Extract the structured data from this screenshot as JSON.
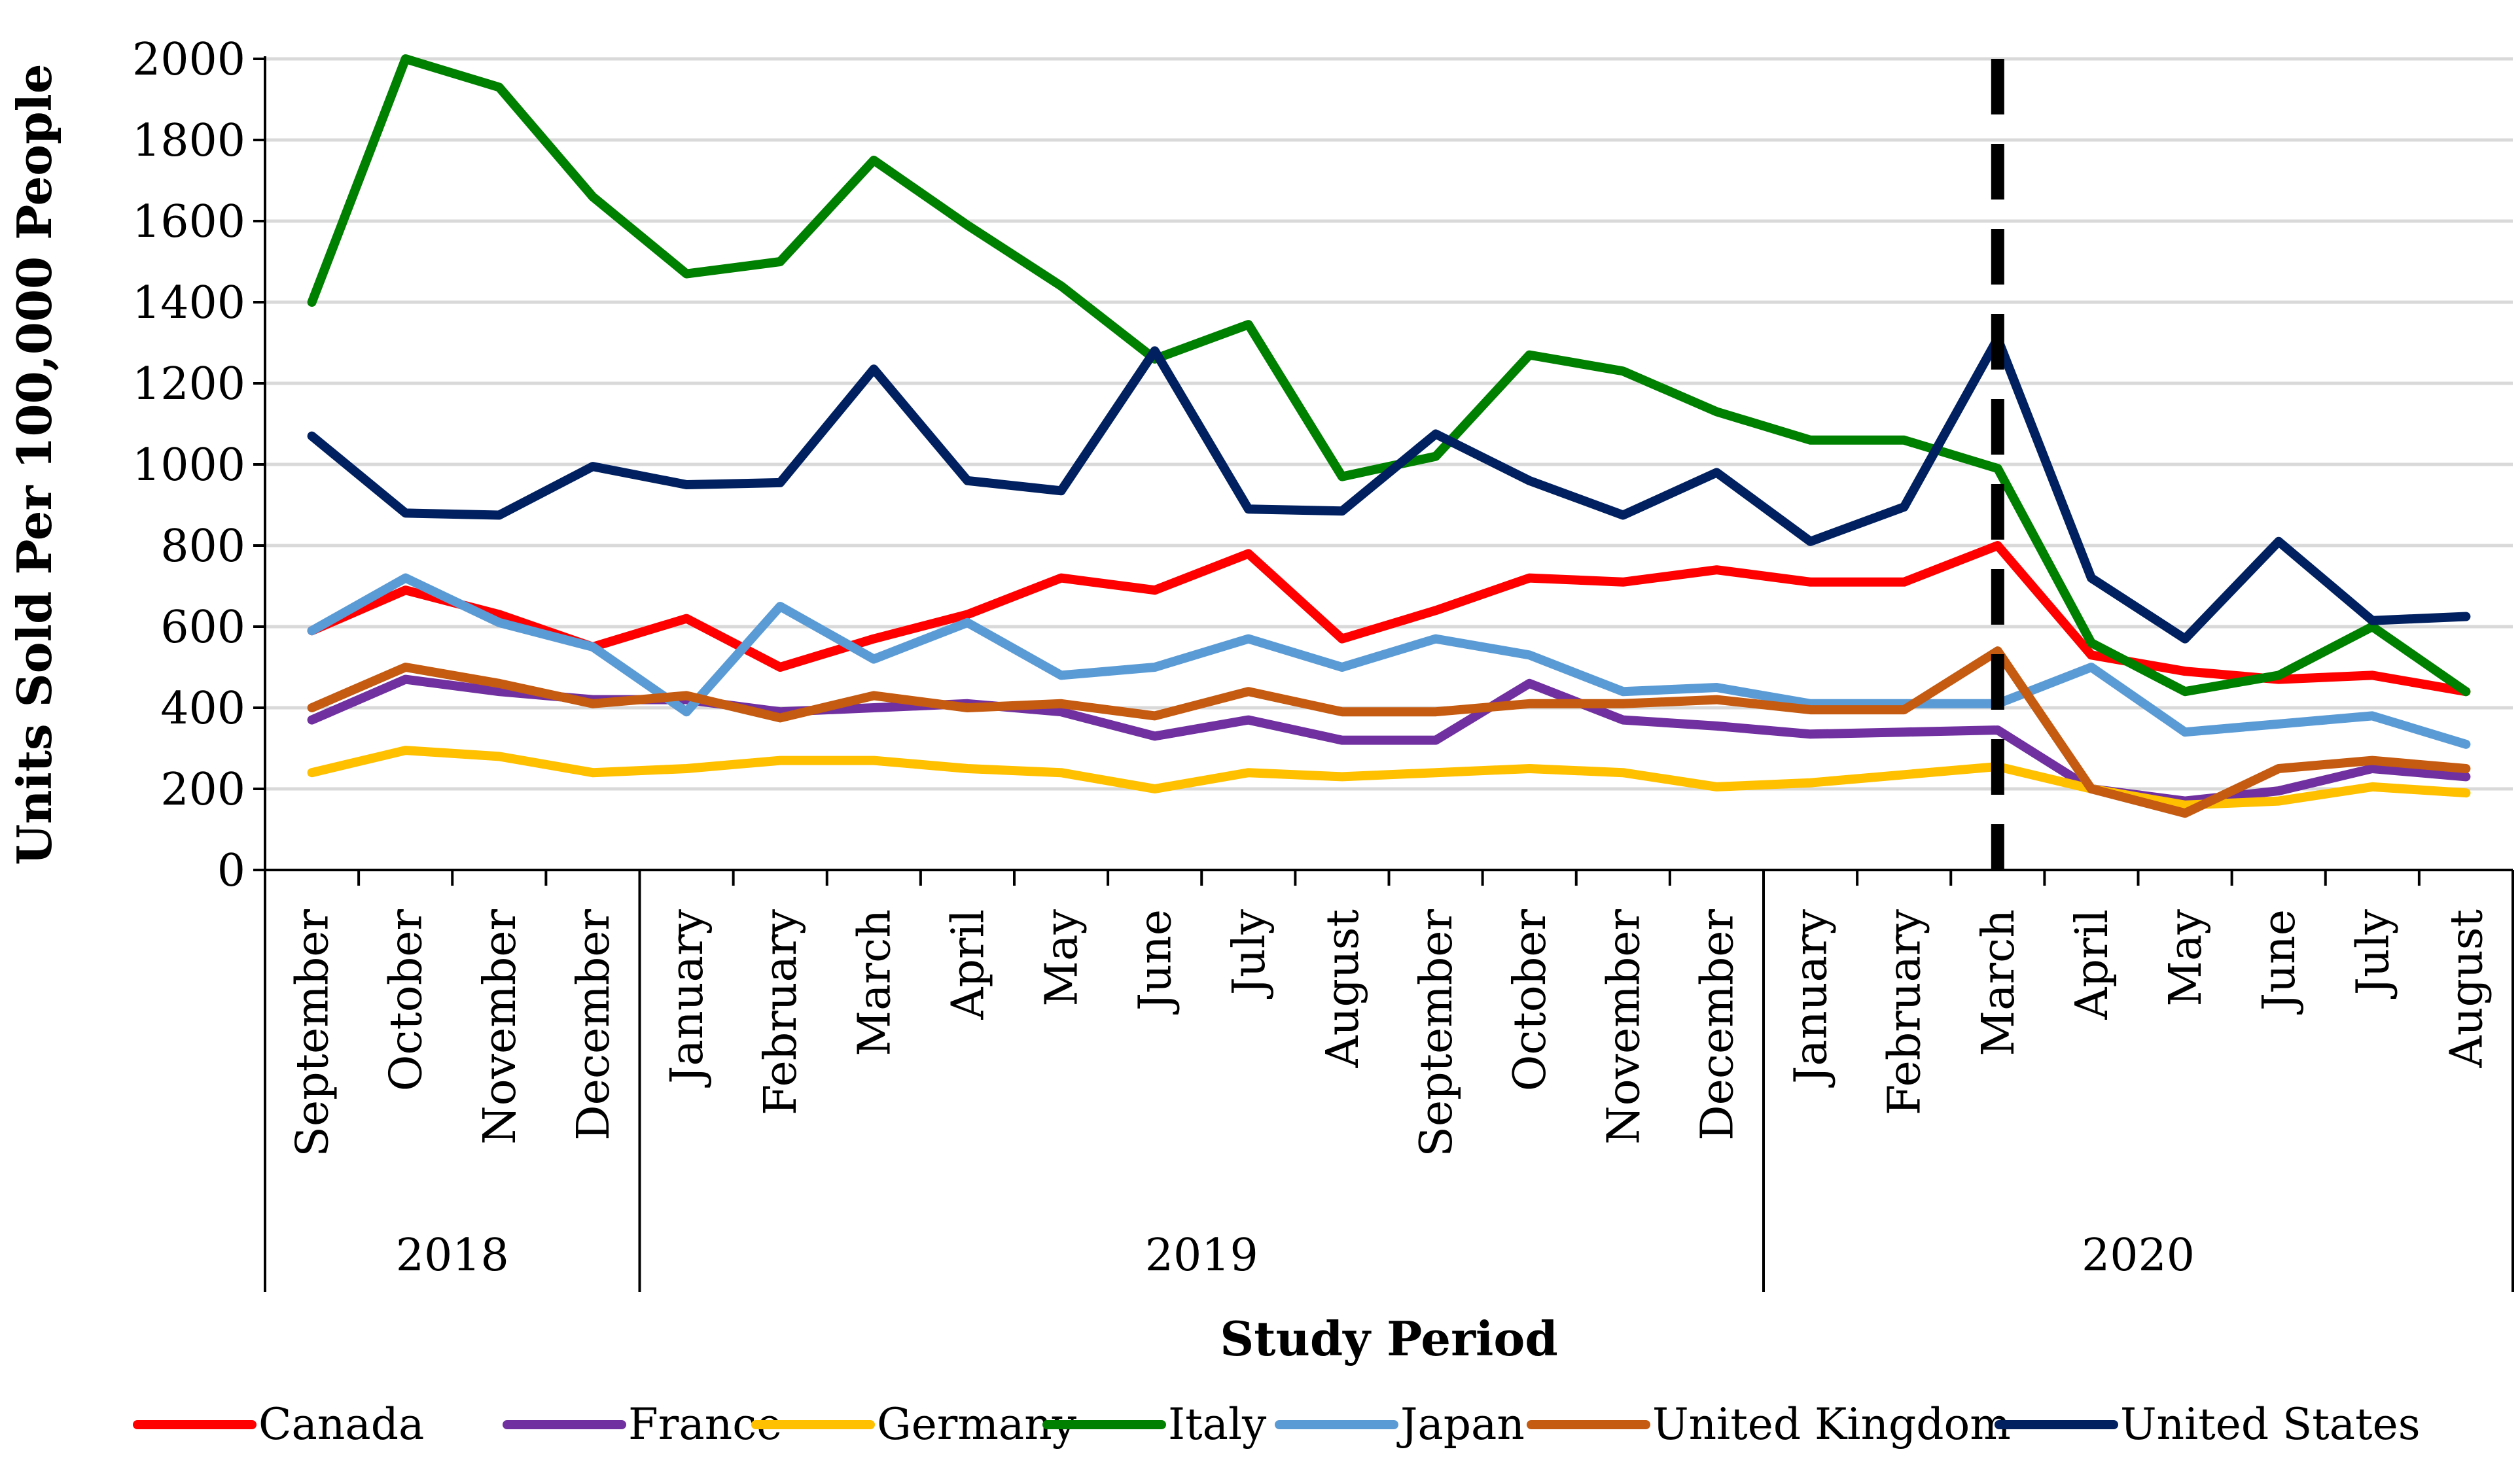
{
  "chart_data": {
    "type": "line",
    "title": "",
    "xlabel": "Study Period",
    "ylabel": "Units Sold Per 100,000 People",
    "ylim": [
      0,
      2000
    ],
    "yticks": [
      0,
      200,
      400,
      600,
      800,
      1000,
      1200,
      1400,
      1600,
      1800,
      2000
    ],
    "grid": true,
    "legend_position": "bottom",
    "categories": [
      "September",
      "October",
      "November",
      "December",
      "January",
      "February",
      "March",
      "April",
      "May",
      "June",
      "July",
      "August",
      "September",
      "October",
      "November",
      "December",
      "January",
      "February",
      "March",
      "April",
      "May",
      "June",
      "July",
      "August"
    ],
    "year_groups": [
      {
        "label": "2018",
        "start": 0,
        "end": 3
      },
      {
        "label": "2019",
        "start": 4,
        "end": 15
      },
      {
        "label": "2020",
        "start": 16,
        "end": 23
      }
    ],
    "marker": {
      "category_index": 18,
      "style": "dashed",
      "label": "March 2020"
    },
    "series": [
      {
        "name": "Canada",
        "color": "#FF0000",
        "values": [
          590,
          690,
          630,
          550,
          620,
          500,
          570,
          630,
          720,
          690,
          780,
          570,
          640,
          720,
          710,
          740,
          710,
          710,
          800,
          530,
          490,
          470,
          480,
          440
        ]
      },
      {
        "name": "France",
        "color": "#7030A0",
        "values": [
          370,
          470,
          440,
          420,
          420,
          390,
          400,
          410,
          390,
          330,
          370,
          320,
          320,
          460,
          370,
          355,
          335,
          340,
          345,
          200,
          170,
          195,
          250,
          230
        ]
      },
      {
        "name": "Germany",
        "color": "#FFC000",
        "values": [
          240,
          295,
          280,
          240,
          250,
          270,
          270,
          250,
          240,
          200,
          240,
          230,
          240,
          250,
          240,
          205,
          215,
          235,
          255,
          200,
          160,
          170,
          205,
          190
        ]
      },
      {
        "name": "Italy",
        "color": "#008000",
        "values": [
          1400,
          2000,
          1930,
          1660,
          1470,
          1500,
          1750,
          1590,
          1440,
          1260,
          1345,
          970,
          1020,
          1270,
          1230,
          1130,
          1060,
          1060,
          990,
          560,
          440,
          480,
          600,
          440
        ]
      },
      {
        "name": "Japan",
        "color": "#5B9BD5",
        "values": [
          590,
          720,
          610,
          550,
          390,
          650,
          520,
          610,
          480,
          500,
          570,
          500,
          570,
          530,
          440,
          450,
          410,
          410,
          410,
          500,
          340,
          360,
          380,
          310
        ]
      },
      {
        "name": "United Kingdom",
        "color": "#C55A11",
        "values": [
          400,
          500,
          460,
          410,
          430,
          375,
          430,
          400,
          410,
          380,
          440,
          390,
          390,
          410,
          410,
          420,
          395,
          395,
          540,
          200,
          140,
          250,
          270,
          250
        ]
      },
      {
        "name": "United States",
        "color": "#002060",
        "values": [
          1070,
          880,
          875,
          995,
          950,
          955,
          1235,
          960,
          935,
          1280,
          890,
          885,
          1075,
          960,
          875,
          980,
          810,
          895,
          1310,
          720,
          570,
          810,
          615,
          625
        ]
      }
    ]
  }
}
